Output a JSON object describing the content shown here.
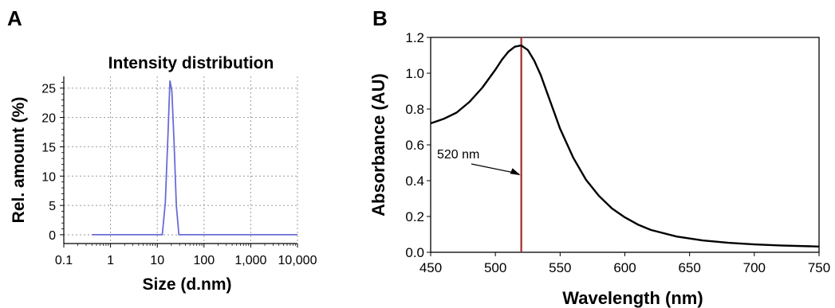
{
  "panel_a": {
    "letter": "A"
  },
  "panel_b": {
    "letter": "B"
  },
  "chart_data": [
    {
      "type": "line",
      "title": "Intensity distribution",
      "xlabel": "Size (d.nm)",
      "ylabel": "Rel. amount (%)",
      "x_scale": "log",
      "xlim": [
        0.1,
        10000
      ],
      "ylim": [
        -1.5,
        27
      ],
      "grid": true,
      "x_ticks": [
        0.1,
        1,
        10,
        100,
        1000,
        10000
      ],
      "x_tick_labels": [
        "0.1",
        "1",
        "10",
        "100",
        "1,000",
        "10,000"
      ],
      "y_ticks": [
        0,
        5,
        10,
        15,
        20,
        25
      ],
      "y_tick_labels": [
        "0",
        "5",
        "10",
        "15",
        "20",
        "25"
      ],
      "line_color": "#6b6bd6",
      "series": [
        {
          "x": [
            0.4,
            12.8,
            14.9,
            16.9,
            18.7,
            20.5,
            22.8,
            25.6,
            29.0,
            10000
          ],
          "y": [
            0,
            0,
            5.5,
            17,
            26.3,
            24.5,
            16,
            5,
            0,
            0
          ]
        }
      ]
    },
    {
      "type": "line",
      "title": "",
      "xlabel": "Wavelength (nm)",
      "ylabel": "Absorbance (AU)",
      "xlim": [
        450,
        750
      ],
      "ylim": [
        0,
        1.2
      ],
      "grid": false,
      "x_ticks": [
        450,
        500,
        550,
        600,
        650,
        700,
        750
      ],
      "x_tick_labels": [
        "450",
        "500",
        "550",
        "600",
        "650",
        "700",
        "750"
      ],
      "y_ticks": [
        0,
        0.2,
        0.4,
        0.6,
        0.8,
        1.0,
        1.2
      ],
      "y_tick_labels": [
        "0.0",
        "0.2",
        "0.4",
        "0.6",
        "0.8",
        "1.0",
        "1.2"
      ],
      "line_color": "#000000",
      "series": [
        {
          "x": [
            450,
            460,
            470,
            480,
            490,
            500,
            505,
            510,
            515,
            520,
            525,
            530,
            535,
            540,
            545,
            550,
            560,
            570,
            580,
            590,
            600,
            610,
            620,
            640,
            660,
            680,
            700,
            720,
            750
          ],
          "y": [
            0.72,
            0.745,
            0.78,
            0.84,
            0.92,
            1.02,
            1.075,
            1.12,
            1.148,
            1.155,
            1.13,
            1.07,
            0.99,
            0.89,
            0.79,
            0.69,
            0.53,
            0.405,
            0.315,
            0.245,
            0.195,
            0.155,
            0.125,
            0.088,
            0.066,
            0.053,
            0.044,
            0.038,
            0.032
          ]
        }
      ],
      "marker_line": {
        "x": 520,
        "color": "#a52a2a"
      },
      "annotation": {
        "text": "520 nm",
        "x": 520,
        "y": 0.43
      }
    }
  ]
}
